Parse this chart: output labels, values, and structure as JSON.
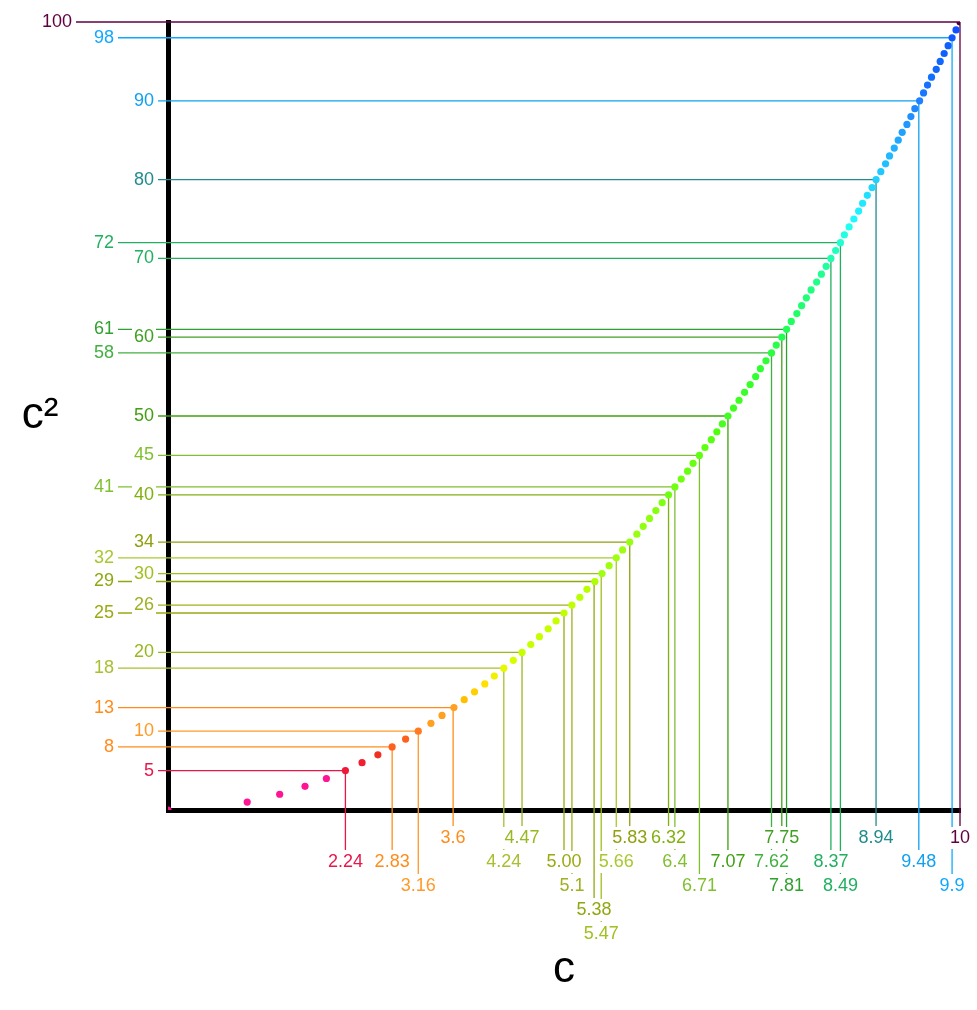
{
  "chart_data": {
    "type": "scatter",
    "xlabel": "c",
    "ylabel": "c²",
    "xlim": [
      0,
      10
    ],
    "ylim": [
      0,
      100
    ],
    "grid": false,
    "legend": false,
    "marker": "circle",
    "xticks": [
      3.6,
      4.47,
      5.83,
      6.32,
      7.75,
      8.94,
      10
    ],
    "yticks": [
      5,
      10,
      20,
      26,
      30,
      34,
      40,
      45,
      50,
      60,
      70,
      80,
      90
    ],
    "series": [
      {
        "x": [
          0,
          1,
          1.41,
          1.73,
          2,
          2.24,
          2.45,
          2.65,
          2.83,
          3,
          3.16,
          3.32,
          3.46,
          3.61,
          3.74,
          3.87,
          4,
          4.12,
          4.24,
          4.36,
          4.47,
          4.58,
          4.69,
          4.8,
          4.9,
          5,
          5.1,
          5.2,
          5.29,
          5.39,
          5.48,
          5.57,
          5.66,
          5.74,
          5.83,
          5.92,
          6,
          6.08,
          6.16,
          6.24,
          6.32,
          6.4,
          6.48,
          6.56,
          6.63,
          6.71,
          6.78,
          6.86,
          6.93,
          7,
          7.07,
          7.14,
          7.21,
          7.28,
          7.35,
          7.42,
          7.48,
          7.55,
          7.62,
          7.68,
          7.75,
          7.81,
          7.87,
          7.94,
          8,
          8.06,
          8.12,
          8.19,
          8.25,
          8.31,
          8.37,
          8.43,
          8.49,
          8.54,
          8.6,
          8.66,
          8.72,
          8.77,
          8.83,
          8.89,
          8.94,
          9,
          9.06,
          9.11,
          9.17,
          9.22,
          9.27,
          9.33,
          9.38,
          9.43,
          9.49,
          9.54,
          9.59,
          9.64,
          9.7,
          9.75,
          9.8,
          9.85,
          9.9,
          9.95,
          10
        ],
        "values": [
          0,
          1,
          2,
          3,
          4,
          5,
          6,
          7,
          8,
          9,
          10,
          11,
          12,
          13,
          14,
          15,
          16,
          17,
          18,
          19,
          20,
          21,
          22,
          23,
          24,
          25,
          26,
          27,
          28,
          29,
          30,
          31,
          32,
          33,
          34,
          35,
          36,
          37,
          38,
          39,
          40,
          41,
          42,
          43,
          44,
          45,
          46,
          47,
          48,
          49,
          50,
          51,
          52,
          53,
          54,
          55,
          56,
          57,
          58,
          59,
          60,
          61,
          62,
          63,
          64,
          65,
          66,
          67,
          68,
          69,
          70,
          71,
          72,
          73,
          74,
          75,
          76,
          77,
          78,
          79,
          80,
          81,
          82,
          83,
          84,
          85,
          86,
          87,
          88,
          89,
          90,
          91,
          92,
          93,
          94,
          95,
          96,
          97,
          98,
          99,
          100
        ],
        "colors": [
          "#ff1493",
          "#ff1493",
          "#ff1493",
          "#ff1493",
          "#ff1493",
          "#f01838",
          "#f02030",
          "#f03020",
          "#ff6020",
          "#ff6020",
          "#ff7a20",
          "#ffa020",
          "#ffa020",
          "#ffa020",
          "#ffc000",
          "#ffd000",
          "#ffe000",
          "#f0f000",
          "#e8f800",
          "#d8ff00",
          "#c8ff00",
          "#c8ff00",
          "#c8ff00",
          "#c8ff00",
          "#c8ff00",
          "#c0ff00",
          "#c0ff00",
          "#b8ff00",
          "#b8ff00",
          "#b0ff00",
          "#a0ff10",
          "#a0ff10",
          "#a0ff10",
          "#a0ff10",
          "#98ff10",
          "#98ff10",
          "#90ff10",
          "#90ff10",
          "#88ff10",
          "#80ff10",
          "#70ff10",
          "#70ff10",
          "#70ff10",
          "#68ff10",
          "#68ff10",
          "#60ff10",
          "#60ff10",
          "#58ff10",
          "#50ff10",
          "#48ff20",
          "#40ff20",
          "#40ff20",
          "#40ff20",
          "#38ff28",
          "#38ff28",
          "#30ff30",
          "#30ff30",
          "#30ff38",
          "#28ff40",
          "#28ff48",
          "#20ff50",
          "#20ff58",
          "#20ff60",
          "#20ff68",
          "#20ff70",
          "#20ff78",
          "#20ff80",
          "#20ff88",
          "#20ff90",
          "#20ffa0",
          "#20ffb0",
          "#20ffc0",
          "#20ffd0",
          "#20ffe0",
          "#20fff0",
          "#20f8ff",
          "#20f0ff",
          "#20e8ff",
          "#20e0ff",
          "#20d8ff",
          "#20d0ff",
          "#20c8ff",
          "#20c0ff",
          "#20b8ff",
          "#20b0ff",
          "#20a8ff",
          "#20a0ff",
          "#2098ff",
          "#2090ff",
          "#2088ff",
          "#2080ff",
          "#1878ff",
          "#1870ff",
          "#1070ff",
          "#1068ff",
          "#1068ff",
          "#1060ff",
          "#1060ff",
          "#1058ff",
          "#1050ff",
          "#500040"
        ]
      }
    ],
    "ref_lines": [
      {
        "axis": "y",
        "value": 5,
        "color": "#e8174a"
      },
      {
        "axis": "y",
        "value": 8,
        "label": "8",
        "color": "#ff8c1a"
      },
      {
        "axis": "y",
        "value": 10,
        "color": "#ff9a2a"
      },
      {
        "axis": "y",
        "value": 13,
        "label": "13",
        "color": "#ff8c1a"
      },
      {
        "axis": "y",
        "value": 18,
        "label": "18",
        "color": "#a8c030"
      },
      {
        "axis": "y",
        "value": 20,
        "color": "#98b820"
      },
      {
        "axis": "y",
        "value": 25,
        "label": "25",
        "color": "#9aaa10"
      },
      {
        "axis": "y",
        "value": 26,
        "color": "#a0b020"
      },
      {
        "axis": "y",
        "value": 29,
        "label": "29",
        "color": "#90a810"
      },
      {
        "axis": "y",
        "value": 30,
        "color": "#a0c020"
      },
      {
        "axis": "y",
        "value": 32,
        "label": "32",
        "color": "#a8c830"
      },
      {
        "axis": "y",
        "value": 34,
        "color": "#90a010"
      },
      {
        "axis": "y",
        "value": 40,
        "color": "#80b010"
      },
      {
        "axis": "y",
        "value": 41,
        "label": "41",
        "color": "#80c030"
      },
      {
        "axis": "y",
        "value": 45,
        "color": "#80c030"
      },
      {
        "axis": "y",
        "value": 50,
        "color": "#40a010"
      },
      {
        "axis": "y",
        "value": 58,
        "label": "58",
        "color": "#40b040"
      },
      {
        "axis": "y",
        "value": 60,
        "color": "#40a020"
      },
      {
        "axis": "y",
        "value": 61,
        "label": "61",
        "color": "#30a030"
      },
      {
        "axis": "y",
        "value": 70,
        "color": "#20b060"
      },
      {
        "axis": "y",
        "value": 72,
        "label": "72",
        "color": "#20b060"
      },
      {
        "axis": "y",
        "value": 80,
        "color": "#208c8c"
      },
      {
        "axis": "y",
        "value": 90,
        "color": "#10a0f0"
      },
      {
        "axis": "y",
        "value": 98,
        "label": "98",
        "color": "#10a8ff"
      },
      {
        "axis": "y",
        "value": 100,
        "label": "100",
        "color": "#600040"
      },
      {
        "axis": "x",
        "value": 2.24,
        "label": "2.24",
        "color": "#e8174a"
      },
      {
        "axis": "x",
        "value": 2.83,
        "label": "2.83",
        "color": "#ff8c1a"
      },
      {
        "axis": "x",
        "value": 3.16,
        "label": "3.16",
        "color": "#ff9a2a"
      },
      {
        "axis": "x",
        "value": 3.6,
        "color": "#ff8c1a"
      },
      {
        "axis": "x",
        "value": 4.24,
        "label": "4.24",
        "color": "#a8c030"
      },
      {
        "axis": "x",
        "value": 4.47,
        "color": "#98b820"
      },
      {
        "axis": "x",
        "value": 5,
        "label": "5.00",
        "color": "#9aaa10"
      },
      {
        "axis": "x",
        "value": 5.1,
        "label": "5.1",
        "color": "#a0b020"
      },
      {
        "axis": "x",
        "value": 5.38,
        "label": "5.38",
        "color": "#90a810"
      },
      {
        "axis": "x",
        "value": 5.47,
        "label": "5.47",
        "color": "#a0c020"
      },
      {
        "axis": "x",
        "value": 5.66,
        "label": "5.66",
        "color": "#a8c830"
      },
      {
        "axis": "x",
        "value": 5.83,
        "color": "#90a010"
      },
      {
        "axis": "x",
        "value": 6.32,
        "color": "#80b010"
      },
      {
        "axis": "x",
        "value": 6.4,
        "label": "6.4",
        "color": "#80c030"
      },
      {
        "axis": "x",
        "value": 6.71,
        "label": "6.71",
        "color": "#80c030"
      },
      {
        "axis": "x",
        "value": 7.07,
        "label": "7.07",
        "color": "#40a010"
      },
      {
        "axis": "x",
        "value": 7.62,
        "label": "7.62",
        "color": "#40b040"
      },
      {
        "axis": "x",
        "value": 7.75,
        "color": "#40a020"
      },
      {
        "axis": "x",
        "value": 7.81,
        "label": "7.81",
        "color": "#30a030"
      },
      {
        "axis": "x",
        "value": 8.37,
        "label": "8.37",
        "color": "#20b060"
      },
      {
        "axis": "x",
        "value": 8.49,
        "label": "8.49",
        "color": "#20b060"
      },
      {
        "axis": "x",
        "value": 8.94,
        "color": "#208c8c"
      },
      {
        "axis": "x",
        "value": 9.48,
        "label": "9.48",
        "color": "#10a0f0"
      },
      {
        "axis": "x",
        "value": 9.9,
        "label": "9.9",
        "color": "#10a8ff"
      },
      {
        "axis": "x",
        "value": 10,
        "color": "#600040"
      }
    ]
  }
}
